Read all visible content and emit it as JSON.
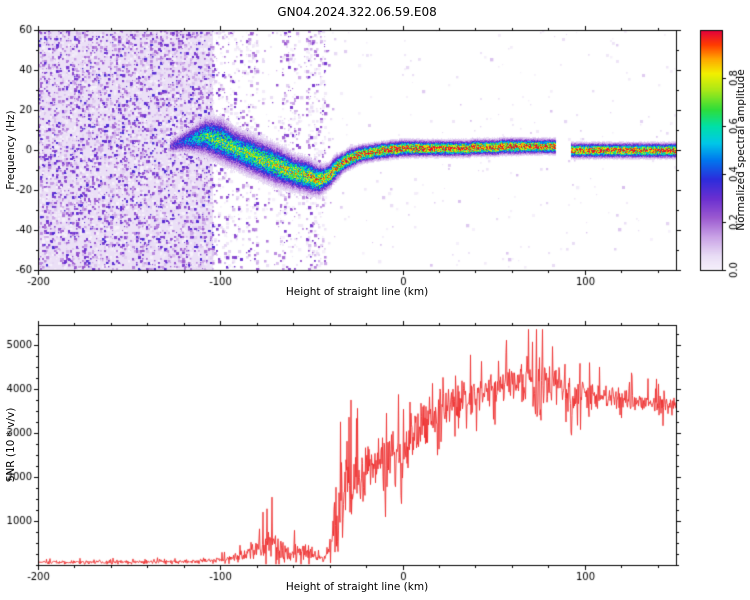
{
  "title": "GN04.2024.322.06.59.E08",
  "colors": {
    "background": "#ffffff",
    "frame": "#000000",
    "snr_line": "#ee3030"
  },
  "colormap": [
    [
      0.0,
      "#f6f1fb"
    ],
    [
      0.06,
      "#e9ddf5"
    ],
    [
      0.14,
      "#c9a2e6"
    ],
    [
      0.22,
      "#9b59d0"
    ],
    [
      0.3,
      "#6a2fd0"
    ],
    [
      0.38,
      "#2c2cdc"
    ],
    [
      0.46,
      "#0077ee"
    ],
    [
      0.53,
      "#00c8e8"
    ],
    [
      0.6,
      "#00e0a8"
    ],
    [
      0.67,
      "#2edd3a"
    ],
    [
      0.75,
      "#a8e818"
    ],
    [
      0.82,
      "#f2f000"
    ],
    [
      0.88,
      "#ffa800"
    ],
    [
      0.94,
      "#ff3c00"
    ],
    [
      1.0,
      "#e2003c"
    ]
  ],
  "chart_data": [
    {
      "type": "heatmap",
      "title": "GN04.2024.322.06.59.E08",
      "xlabel": "Height of straight line (km)",
      "ylabel": "Frequency (Hz)",
      "xlim": [
        -200,
        150
      ],
      "ylim": [
        -60,
        60
      ],
      "xticks": [
        -200,
        -100,
        0,
        100
      ],
      "yticks": [
        -60,
        -40,
        -20,
        0,
        20,
        40,
        60
      ],
      "grid": false,
      "colorbar": {
        "label": "Normalized spectral amplitude",
        "ticks": [
          "0.0",
          "0.2",
          "0.4",
          "0.6",
          "0.8"
        ],
        "lim": [
          0,
          1
        ],
        "position": "right"
      },
      "noise_regions": [
        {
          "x0": -200,
          "x1": -104,
          "density": 0.48,
          "vmax": 0.34,
          "wash": 0.05
        },
        {
          "x0": -104,
          "x1": -88,
          "density": 0.18,
          "vmax": 0.3
        },
        {
          "x0": -88,
          "x1": -38,
          "density": 0.05,
          "vmax": 0.26
        },
        {
          "x0": -38,
          "x1": 150,
          "density": 0.012,
          "vmax": 0.1
        }
      ],
      "noise_bands": [
        [
          -86,
          -80,
          0.22
        ],
        [
          -68,
          -57,
          0.2
        ],
        [
          -53,
          -43,
          0.26
        ]
      ],
      "ridge": [
        [
          -128,
          2,
          3,
          0.28
        ],
        [
          -118,
          5,
          5,
          0.45
        ],
        [
          -108,
          7,
          8,
          0.6
        ],
        [
          -100,
          5,
          9,
          0.65
        ],
        [
          -92,
          1,
          8,
          0.65
        ],
        [
          -84,
          -2,
          8,
          0.68
        ],
        [
          -76,
          -5,
          8,
          0.7
        ],
        [
          -68,
          -8,
          8,
          0.72
        ],
        [
          -60,
          -11,
          7,
          0.74
        ],
        [
          -52,
          -13,
          7,
          0.76
        ],
        [
          -46,
          -15,
          6,
          0.78
        ],
        [
          -41,
          -13,
          5,
          0.8
        ],
        [
          -37,
          -9,
          5,
          0.84
        ],
        [
          -33,
          -6,
          4,
          0.86
        ],
        [
          -29,
          -4,
          4,
          0.88
        ],
        [
          -24,
          -2,
          3.6,
          0.9
        ],
        [
          -18,
          -1,
          3.4,
          0.92
        ],
        [
          -10,
          0,
          3.4,
          0.93
        ],
        [
          0,
          1,
          3.4,
          0.94
        ],
        [
          15,
          1,
          3.2,
          0.94
        ],
        [
          30,
          1,
          3.2,
          0.94
        ],
        [
          45,
          1.5,
          3.2,
          0.94
        ],
        [
          60,
          2,
          3.2,
          0.94
        ],
        [
          75,
          2,
          3,
          0.94
        ],
        [
          83,
          2,
          3,
          0.93
        ],
        [
          93,
          0,
          3,
          0.9
        ],
        [
          105,
          0,
          3,
          0.92
        ],
        [
          120,
          0,
          3,
          0.92
        ],
        [
          135,
          0,
          3,
          0.92
        ],
        [
          150,
          0,
          3,
          0.92
        ]
      ],
      "ridge_gaps": [
        [
          84,
          92
        ]
      ]
    },
    {
      "type": "line",
      "xlabel": "Height of straight line (km)",
      "ylabel": "SNR (10 * v/v)",
      "xlim": [
        -200,
        150
      ],
      "ylim": [
        0,
        5450
      ],
      "xticks": [
        -200,
        -100,
        0,
        100
      ],
      "yticks": [
        1000,
        2000,
        3000,
        4000,
        5000
      ],
      "grid": false,
      "series": [
        {
          "name": "SNR",
          "color": "#ee3030",
          "profile": [
            [
              -200,
              60,
              50
            ],
            [
              -160,
              65,
              55
            ],
            [
              -130,
              70,
              60
            ],
            [
              -110,
              90,
              70
            ],
            [
              -100,
              120,
              90
            ],
            [
              -92,
              160,
              130
            ],
            [
              -85,
              260,
              220
            ],
            [
              -78,
              420,
              420
            ],
            [
              -73,
              560,
              700
            ],
            [
              -68,
              420,
              380
            ],
            [
              -62,
              260,
              220
            ],
            [
              -57,
              320,
              330
            ],
            [
              -52,
              280,
              260
            ],
            [
              -47,
              170,
              130
            ],
            [
              -43,
              120,
              90
            ],
            [
              -40,
              260,
              300
            ],
            [
              -37,
              900,
              1300
            ],
            [
              -34,
              1300,
              1300
            ],
            [
              -30,
              1700,
              1200
            ],
            [
              -26,
              1900,
              1100
            ],
            [
              -22,
              2100,
              1000
            ],
            [
              -18,
              2200,
              950
            ],
            [
              -14,
              2300,
              900
            ],
            [
              -10,
              2300,
              1000
            ],
            [
              -6,
              2400,
              1000
            ],
            [
              -2,
              2500,
              900
            ],
            [
              2,
              2700,
              900
            ],
            [
              8,
              3000,
              800
            ],
            [
              14,
              3300,
              750
            ],
            [
              20,
              3500,
              700
            ],
            [
              26,
              3650,
              650
            ],
            [
              32,
              3750,
              600
            ],
            [
              40,
              3850,
              550
            ],
            [
              48,
              3950,
              550
            ],
            [
              56,
              4050,
              600
            ],
            [
              64,
              4150,
              700
            ],
            [
              70,
              4300,
              900
            ],
            [
              74,
              3500,
              1700
            ],
            [
              78,
              4200,
              700
            ],
            [
              84,
              4100,
              600
            ],
            [
              90,
              3950,
              550
            ],
            [
              95,
              3650,
              900
            ],
            [
              100,
              3900,
              450
            ],
            [
              108,
              3850,
              400
            ],
            [
              116,
              3800,
              380
            ],
            [
              124,
              3750,
              360
            ],
            [
              132,
              3700,
              350
            ],
            [
              140,
              3650,
              340
            ],
            [
              150,
              3600,
              330
            ]
          ]
        }
      ]
    }
  ]
}
